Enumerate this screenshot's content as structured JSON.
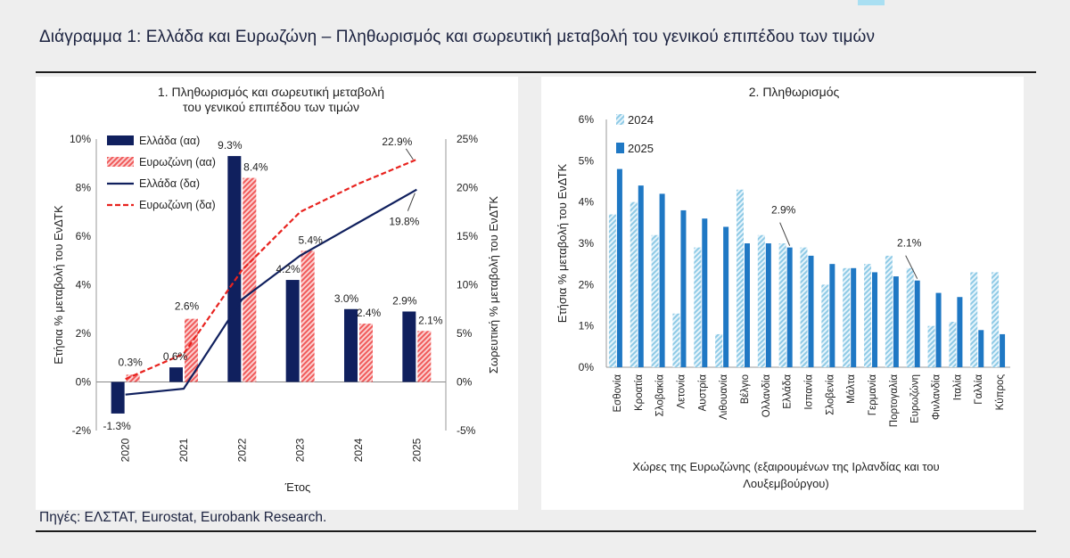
{
  "title": "Διάγραμμα 1: Ελλάδα και Ευρωζώνη – Πληθωρισμός και σωρευτική μεταβολή του γενικού επιπέδου των τιμών",
  "source": "Πηγές: ΕΛΣΤΑΤ, Eurostat, Eurobank Research.",
  "colors": {
    "greece": "#10205e",
    "eurozone_bar": "#f05a5a",
    "eurozone_line": "#e8231f",
    "c2024": "#8ecae6",
    "c2025": "#1f78c4"
  },
  "chart_data": [
    {
      "type": "bar",
      "title": [
        "1. Πληθωρισμός και σωρευτική μεταβολή",
        "του γενικού επιπέδου των τιμών"
      ],
      "xlabel": "Έτος",
      "ylabel": "Ετήσια % μεταβολή του ΕνΔΤΚ",
      "y2label": "Σωρευτική % μεταβολή του ΕνΔΤΚ",
      "categories": [
        "2020",
        "2021",
        "2022",
        "2023",
        "2024",
        "2025"
      ],
      "ylim": [
        -2,
        10
      ],
      "yticks": [
        "-2%",
        "0%",
        "2%",
        "4%",
        "6%",
        "8%",
        "10%"
      ],
      "y2lim": [
        -5,
        25
      ],
      "y2ticks": [
        "-5%",
        "0%",
        "5%",
        "10%",
        "15%",
        "20%",
        "25%"
      ],
      "legend": [
        "Ελλάδα (αα)",
        "Ευρωζώνη (αα)",
        "Ελλάδα (δα)",
        "Ευρωζώνη (δα)"
      ],
      "series": [
        {
          "name": "Ελλάδα (αα)",
          "kind": "bar",
          "values": [
            -1.3,
            0.6,
            9.3,
            4.2,
            3.0,
            2.9
          ],
          "labels": [
            "-1.3%",
            "0.6%",
            "9.3%",
            "4.2%",
            "3.0%",
            "2.9%"
          ]
        },
        {
          "name": "Ευρωζώνη (αα)",
          "kind": "bar",
          "values": [
            0.3,
            2.6,
            8.4,
            5.4,
            2.4,
            2.1
          ],
          "labels": [
            "0.3%",
            "2.6%",
            "8.4%",
            "5.4%",
            "2.4%",
            "2.1%"
          ]
        },
        {
          "name": "Ελλάδα (δα)",
          "kind": "line",
          "axis": "right",
          "values": [
            -1.3,
            -0.7,
            8.5,
            13.0,
            16.4,
            19.8
          ],
          "end_label": "19.8%"
        },
        {
          "name": "Ευρωζώνη (δα)",
          "kind": "line",
          "axis": "right",
          "values": [
            0.3,
            2.9,
            11.5,
            17.5,
            20.4,
            22.9
          ],
          "end_label": "22.9%"
        }
      ]
    },
    {
      "type": "bar",
      "title": "2. Πληθωρισμός",
      "ylabel": "Ετήσια % μεταβολή του ΕνΔΤΚ",
      "xlabel": [
        "Χώρες της Ευρωζώνης (εξαιρουμένων της Ιρλανδίας και του",
        "Λουξεμβούργου)"
      ],
      "ylim": [
        0,
        6
      ],
      "yticks": [
        "0%",
        "1%",
        "2%",
        "3%",
        "4%",
        "5%",
        "6%"
      ],
      "categories": [
        "Εσθονία",
        "Κροατία",
        "Σλοβακία",
        "Λετονία",
        "Αυστρία",
        "Λιθουανία",
        "Βέλγιο",
        "Ολλανδία",
        "Ελλάδα",
        "Ισπανία",
        "Σλοβενία",
        "Μάλτα",
        "Γερμανία",
        "Πορτογαλία",
        "Ευρωζώνη",
        "Φινλανδία",
        "Ιταλία",
        "Γαλλία",
        "Κύπρος"
      ],
      "series": [
        {
          "name": "2024",
          "values": [
            3.7,
            4.0,
            3.2,
            1.3,
            2.9,
            0.8,
            4.3,
            3.2,
            3.0,
            2.9,
            2.0,
            2.4,
            2.5,
            2.7,
            2.4,
            1.0,
            1.1,
            2.3,
            2.3
          ]
        },
        {
          "name": "2025",
          "values": [
            4.8,
            4.4,
            4.2,
            3.8,
            3.6,
            3.4,
            3.0,
            3.0,
            2.9,
            2.7,
            2.5,
            2.4,
            2.3,
            2.2,
            2.1,
            1.8,
            1.7,
            0.9,
            0.8
          ]
        }
      ],
      "annotations": [
        {
          "text": "2.9%",
          "category": "Ελλάδα"
        },
        {
          "text": "2.1%",
          "category": "Ευρωζώνη"
        }
      ]
    }
  ]
}
